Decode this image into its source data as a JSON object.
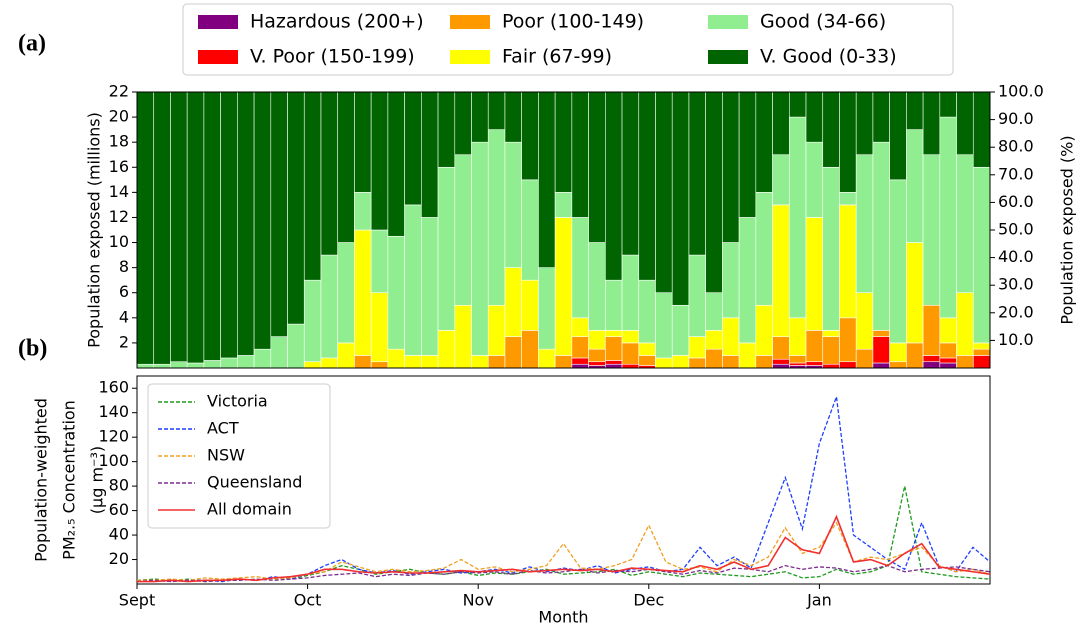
{
  "chart_data": [
    {
      "type": "stacked_bar",
      "panel": "(a)",
      "ylabel": "Population exposed (millions)",
      "y2label": "Population exposed (%)",
      "ylim": [
        0,
        22
      ],
      "yticks": [
        2,
        4,
        6,
        8,
        10,
        12,
        14,
        16,
        18,
        20,
        22
      ],
      "y2lim": [
        0,
        100
      ],
      "y2ticks": [
        {
          "value": 10,
          "label": "10.0"
        },
        {
          "value": 20,
          "label": "20.0"
        },
        {
          "value": 30,
          "label": "30.0"
        },
        {
          "value": 40,
          "label": "40.0"
        },
        {
          "value": 50,
          "label": "50.0"
        },
        {
          "value": 60,
          "label": "60.0"
        },
        {
          "value": 70,
          "label": "70.0"
        },
        {
          "value": 80,
          "label": "80.0"
        },
        {
          "value": 90,
          "label": "90.0"
        },
        {
          "value": 100,
          "label": "100.0"
        }
      ],
      "series": [
        {
          "name": "Hazardous (200+)",
          "color": "#800080",
          "values": [
            0,
            0,
            0,
            0,
            0,
            0,
            0,
            0,
            0,
            0,
            0,
            0,
            0,
            0,
            0,
            0,
            0,
            0,
            0,
            0,
            0,
            0,
            0,
            0,
            0,
            0,
            0.3,
            0.2,
            0.3,
            0,
            0,
            0,
            0,
            0,
            0,
            0,
            0,
            0,
            0.3,
            0.2,
            0.2,
            0,
            0,
            0,
            0.4,
            0,
            0,
            0.5,
            0.4,
            0,
            0
          ]
        },
        {
          "name": "V. Poor (150-199)",
          "color": "#ff0000",
          "values": [
            0,
            0,
            0,
            0,
            0,
            0,
            0,
            0,
            0,
            0,
            0,
            0,
            0,
            0,
            0,
            0,
            0,
            0,
            0,
            0,
            0,
            0,
            0,
            0,
            0,
            0,
            0.5,
            0.3,
            0.3,
            0.3,
            0.2,
            0,
            0,
            0,
            0,
            0,
            0,
            0,
            0.4,
            0.2,
            0.3,
            0.3,
            0.5,
            0,
            2.1,
            0,
            0,
            0.5,
            0.4,
            0,
            1.0
          ]
        },
        {
          "name": "Poor (100-149)",
          "color": "#ff9900",
          "values": [
            0,
            0,
            0,
            0,
            0,
            0,
            0,
            0,
            0,
            0,
            0,
            0,
            0,
            1,
            0.5,
            0,
            0,
            0,
            0,
            0,
            0,
            1,
            2.5,
            3,
            0,
            1,
            1.7,
            1,
            1.9,
            1.7,
            0.8,
            0,
            0,
            0.8,
            1.5,
            1,
            0,
            1,
            1.8,
            0.6,
            2.5,
            2.2,
            3.5,
            1.5,
            0.5,
            0.5,
            2,
            4,
            1.2,
            1,
            0.5
          ]
        },
        {
          "name": "Fair (67-99)",
          "color": "#ffff00",
          "values": [
            0,
            0,
            0,
            0,
            0,
            0,
            0,
            0,
            0,
            0,
            0.5,
            0.8,
            2,
            10,
            5.5,
            1.5,
            1,
            1,
            3,
            5,
            1,
            4,
            5.5,
            4,
            1.5,
            11,
            1.5,
            1.5,
            0.5,
            1,
            1,
            0.8,
            1,
            1.7,
            1.5,
            3,
            2,
            4,
            10.5,
            3,
            9,
            0.5,
            9,
            4.5,
            0,
            1.5,
            8,
            0,
            2,
            5,
            0.5
          ]
        },
        {
          "name": "Good (34-66)",
          "color": "#90ee90",
          "values": [
            0.3,
            0.3,
            0.5,
            0.4,
            0.6,
            0.8,
            1.0,
            1.5,
            2.5,
            3.5,
            6.5,
            8.2,
            8,
            3,
            5,
            9,
            12,
            11,
            13,
            12,
            17,
            14,
            10,
            8,
            6.5,
            2,
            8,
            7,
            4,
            6,
            5,
            5.2,
            4,
            6.5,
            3,
            6,
            10,
            9,
            4,
            16,
            6,
            13,
            1,
            11,
            15,
            13,
            9,
            12,
            16,
            11,
            14
          ]
        },
        {
          "name": "V. Good (0-33)",
          "color": "#006400",
          "values": [
            21.7,
            21.7,
            21.5,
            21.6,
            21.4,
            21.2,
            21.0,
            20.5,
            19.5,
            18.5,
            15,
            13,
            12,
            8,
            11,
            11.5,
            9,
            10,
            6,
            5,
            4,
            3,
            4,
            7,
            14,
            8,
            10,
            12,
            15,
            13,
            15,
            16,
            17,
            13,
            16,
            12,
            10,
            8,
            5,
            2,
            4,
            6,
            8,
            5,
            4,
            7,
            3,
            5,
            2,
            5,
            6
          ]
        }
      ]
    },
    {
      "type": "line",
      "panel": "(b)",
      "xlabel": "Month",
      "ylabel": [
        "Population-weighted",
        "PM₂.₅ Concentration",
        "(μg m⁻³)"
      ],
      "ylim": [
        0,
        170
      ],
      "yticks": [
        20,
        40,
        60,
        80,
        100,
        120,
        140,
        160
      ],
      "categories": [
        "Sept",
        null,
        null,
        null,
        null,
        null,
        null,
        null,
        null,
        null,
        "Oct",
        null,
        null,
        null,
        null,
        null,
        null,
        null,
        null,
        null,
        "Nov",
        null,
        null,
        null,
        null,
        null,
        null,
        null,
        null,
        null,
        "Dec",
        null,
        null,
        null,
        null,
        null,
        null,
        null,
        null,
        null,
        "Jan",
        null,
        null,
        null,
        null,
        null,
        null,
        null,
        null,
        null,
        null
      ],
      "series": [
        {
          "name": "Victoria",
          "color": "#1f9a1f",
          "dashed": true,
          "values": [
            3,
            4,
            3,
            4,
            2,
            3,
            4,
            3,
            5,
            4,
            7,
            10,
            15,
            12,
            8,
            10,
            12,
            9,
            8,
            10,
            7,
            9,
            8,
            10,
            12,
            8,
            9,
            10,
            12,
            7,
            10,
            8,
            6,
            9,
            8,
            7,
            6,
            8,
            10,
            5,
            6,
            12,
            8,
            10,
            15,
            80,
            10,
            8,
            6,
            5,
            4
          ]
        },
        {
          "name": "ACT",
          "color": "#1f3fff",
          "dashed": true,
          "values": [
            2,
            3,
            2,
            3,
            3,
            2,
            4,
            3,
            6,
            4,
            8,
            15,
            20,
            12,
            9,
            11,
            8,
            10,
            12,
            9,
            10,
            12,
            9,
            14,
            10,
            13,
            11,
            15,
            9,
            12,
            14,
            10,
            12,
            30,
            15,
            22,
            13,
            50,
            87,
            45,
            115,
            153,
            40,
            30,
            20,
            12,
            50,
            15,
            10,
            30,
            18
          ]
        },
        {
          "name": "NSW",
          "color": "#f0a020",
          "dashed": true,
          "values": [
            3,
            3,
            4,
            3,
            5,
            4,
            5,
            6,
            4,
            5,
            8,
            10,
            18,
            14,
            10,
            12,
            10,
            11,
            13,
            20,
            12,
            14,
            10,
            12,
            15,
            33,
            13,
            12,
            15,
            20,
            48,
            18,
            12,
            14,
            10,
            20,
            15,
            22,
            46,
            25,
            30,
            50,
            18,
            22,
            20,
            25,
            30,
            15,
            10,
            12,
            8
          ]
        },
        {
          "name": "Queensland",
          "color": "#7b2d8e",
          "dashed": true,
          "values": [
            2,
            3,
            2,
            3,
            2,
            3,
            3,
            4,
            3,
            4,
            5,
            7,
            8,
            9,
            6,
            8,
            7,
            9,
            8,
            10,
            9,
            10,
            8,
            11,
            9,
            10,
            12,
            9,
            11,
            10,
            12,
            10,
            8,
            11,
            9,
            13,
            12,
            10,
            15,
            12,
            14,
            13,
            10,
            12,
            15,
            10,
            12,
            13,
            14,
            12,
            10
          ]
        },
        {
          "name": "All domain",
          "color": "#f03030",
          "dashed": false,
          "values": [
            2,
            2,
            3,
            2,
            3,
            3,
            4,
            3,
            5,
            6,
            8,
            12,
            12,
            10,
            9,
            10,
            9,
            9,
            10,
            11,
            10,
            11,
            12,
            10,
            11,
            12,
            11,
            12,
            10,
            13,
            12,
            11,
            10,
            15,
            12,
            18,
            12,
            15,
            38,
            28,
            25,
            55,
            18,
            20,
            15,
            25,
            33,
            14,
            12,
            10,
            8
          ]
        }
      ]
    }
  ]
}
